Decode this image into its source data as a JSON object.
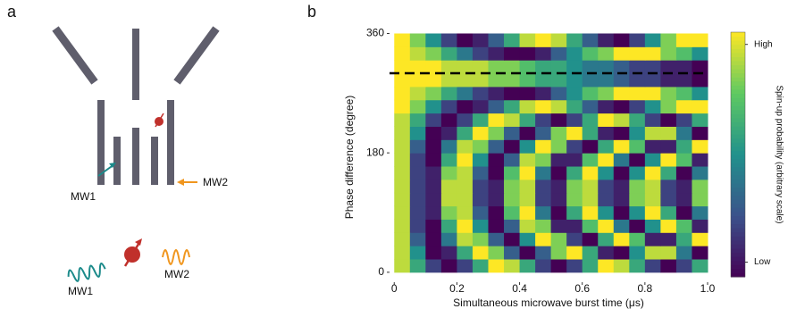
{
  "panel_a": {
    "label": "a",
    "gate_labels": [
      "MW1",
      "MW2"
    ],
    "legend_labels": [
      "MW1",
      "MW2"
    ]
  },
  "chart_data": {
    "type": "heatmap",
    "panel_label": "b",
    "x_label": "Simultaneous microwave burst time (μs)",
    "y_label": "Phase difference (degree)",
    "x": [
      0.025,
      0.075,
      0.125,
      0.175,
      0.225,
      0.275,
      0.325,
      0.375,
      0.425,
      0.475,
      0.525,
      0.575,
      0.625,
      0.675,
      0.725,
      0.775,
      0.825,
      0.875,
      0.925,
      0.975
    ],
    "y": [
      10,
      30,
      50,
      70,
      90,
      110,
      130,
      150,
      170,
      190,
      210,
      230,
      250,
      270,
      290,
      310,
      330,
      350
    ],
    "z": [
      [
        0.9,
        0.6,
        0.2,
        0.0,
        0.2,
        0.6,
        1.0,
        0.9,
        0.6,
        0.2,
        0.0,
        0.2,
        0.6,
        1.0,
        0.9,
        0.6,
        0.2,
        0.0,
        0.2,
        0.6
      ],
      [
        0.9,
        0.5,
        0.0,
        0.1,
        0.6,
        1.0,
        0.8,
        0.3,
        0.0,
        0.3,
        0.8,
        1.0,
        0.6,
        0.1,
        0.0,
        0.5,
        0.9,
        0.9,
        0.4,
        0.0
      ],
      [
        0.9,
        0.3,
        0.0,
        0.4,
        0.9,
        0.8,
        0.3,
        0.0,
        0.5,
        1.0,
        0.8,
        0.2,
        0.0,
        0.6,
        1.0,
        0.7,
        0.1,
        0.1,
        0.6,
        1.0
      ],
      [
        0.9,
        0.2,
        0.0,
        0.6,
        1.0,
        0.5,
        0.0,
        0.3,
        0.9,
        0.8,
        0.1,
        0.1,
        0.7,
        1.0,
        0.4,
        0.0,
        0.5,
        1.0,
        0.7,
        0.1
      ],
      [
        0.9,
        0.2,
        0.1,
        0.8,
        0.9,
        0.3,
        0.0,
        0.7,
        1.0,
        0.4,
        0.0,
        0.6,
        1.0,
        0.5,
        0.0,
        0.5,
        1.0,
        0.6,
        0.0,
        0.4
      ],
      [
        0.9,
        0.2,
        0.1,
        0.9,
        0.9,
        0.2,
        0.1,
        0.8,
        0.9,
        0.2,
        0.1,
        0.8,
        0.9,
        0.2,
        0.1,
        0.8,
        0.9,
        0.2,
        0.1,
        0.8
      ],
      [
        0.9,
        0.2,
        0.1,
        0.9,
        0.9,
        0.2,
        0.1,
        0.8,
        0.9,
        0.2,
        0.1,
        0.8,
        0.9,
        0.2,
        0.1,
        0.8,
        0.9,
        0.2,
        0.1,
        0.8
      ],
      [
        0.9,
        0.2,
        0.1,
        0.8,
        0.9,
        0.3,
        0.0,
        0.7,
        1.0,
        0.4,
        0.0,
        0.6,
        1.0,
        0.5,
        0.0,
        0.5,
        1.0,
        0.6,
        0.0,
        0.4
      ],
      [
        0.9,
        0.2,
        0.0,
        0.6,
        1.0,
        0.5,
        0.0,
        0.3,
        0.9,
        0.8,
        0.1,
        0.1,
        0.7,
        1.0,
        0.4,
        0.0,
        0.5,
        1.0,
        0.7,
        0.1
      ],
      [
        0.9,
        0.3,
        0.0,
        0.4,
        0.9,
        0.8,
        0.3,
        0.0,
        0.5,
        1.0,
        0.8,
        0.2,
        0.0,
        0.6,
        1.0,
        0.7,
        0.1,
        0.1,
        0.6,
        1.0
      ],
      [
        0.9,
        0.5,
        0.0,
        0.1,
        0.6,
        1.0,
        0.8,
        0.3,
        0.0,
        0.3,
        0.8,
        1.0,
        0.6,
        0.1,
        0.0,
        0.5,
        0.9,
        0.9,
        0.4,
        0.0
      ],
      [
        0.9,
        0.6,
        0.2,
        0.0,
        0.2,
        0.6,
        1.0,
        0.9,
        0.6,
        0.2,
        0.0,
        0.2,
        0.6,
        1.0,
        0.9,
        0.6,
        0.2,
        0.0,
        0.2,
        0.6
      ],
      [
        1.0,
        0.8,
        0.5,
        0.2,
        0.0,
        0.1,
        0.3,
        0.6,
        0.9,
        1.0,
        0.9,
        0.6,
        0.3,
        0.1,
        0.0,
        0.2,
        0.5,
        0.8,
        1.0,
        1.0
      ],
      [
        1.0,
        0.9,
        0.8,
        0.6,
        0.4,
        0.2,
        0.1,
        0.0,
        0.0,
        0.1,
        0.3,
        0.5,
        0.7,
        0.8,
        1.0,
        1.0,
        1.0,
        0.8,
        0.7,
        0.5
      ],
      [
        1.0,
        1.0,
        1.0,
        0.9,
        0.9,
        0.9,
        0.8,
        0.8,
        0.7,
        0.6,
        0.6,
        0.5,
        0.4,
        0.4,
        0.3,
        0.2,
        0.2,
        0.1,
        0.1,
        0.0
      ],
      [
        1.0,
        1.0,
        1.0,
        0.9,
        0.9,
        0.9,
        0.8,
        0.8,
        0.7,
        0.6,
        0.6,
        0.5,
        0.4,
        0.4,
        0.3,
        0.2,
        0.2,
        0.1,
        0.1,
        0.0
      ],
      [
        1.0,
        0.9,
        0.8,
        0.6,
        0.4,
        0.2,
        0.1,
        0.0,
        0.0,
        0.1,
        0.3,
        0.5,
        0.7,
        0.8,
        1.0,
        1.0,
        1.0,
        0.8,
        0.7,
        0.5
      ],
      [
        1.0,
        0.8,
        0.5,
        0.2,
        0.0,
        0.1,
        0.3,
        0.6,
        0.9,
        1.0,
        0.9,
        0.6,
        0.3,
        0.1,
        0.0,
        0.2,
        0.5,
        0.8,
        1.0,
        1.0
      ]
    ],
    "xlim": [
      -0.015,
      1.0
    ],
    "ylim": [
      -15,
      362
    ],
    "xticks": [
      0,
      0.2,
      0.4,
      0.6,
      0.8,
      {
        "value": 1,
        "label": "1.0"
      }
    ],
    "yticks": [
      0,
      180,
      360
    ],
    "reference_line": {
      "y": 300,
      "color": "#000000"
    },
    "colormap": [
      "#440154",
      "#3b528b",
      "#21918c",
      "#5ec962",
      "#fde725"
    ],
    "clim": [
      0,
      1
    ],
    "colorbar_label": "Spin-up probability (arbitrary scale)",
    "colorbar_ticks": [
      {
        "value": 0.95,
        "label": "High"
      },
      {
        "value": 0.06,
        "label": "Low"
      }
    ]
  }
}
